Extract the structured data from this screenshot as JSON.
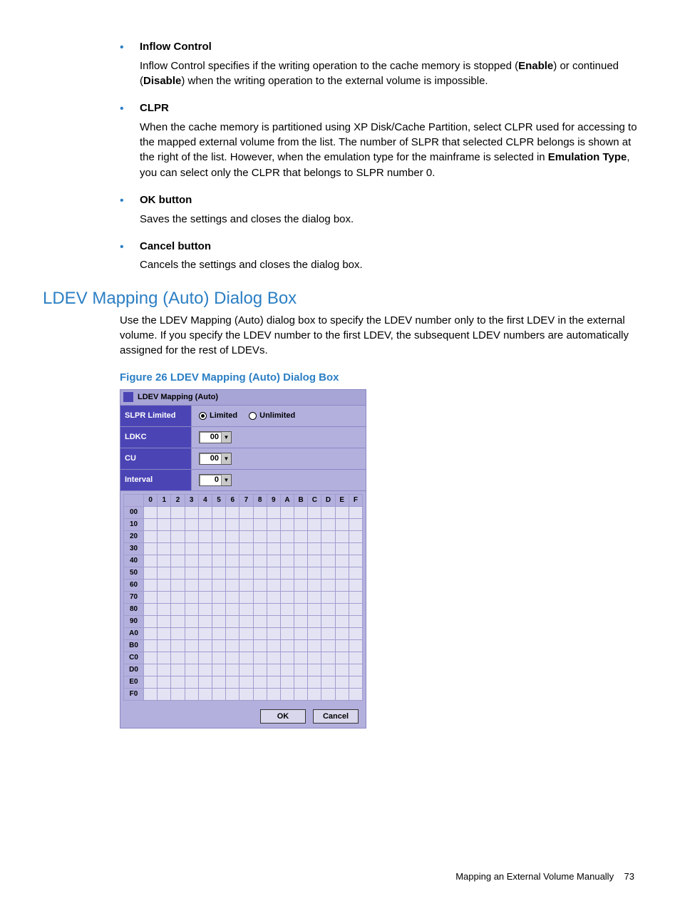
{
  "colors": {
    "accent_text": "#2b7fc4",
    "dialog_bg": "#b3b0de",
    "dialog_label_bg": "#4b44b5",
    "dialog_cell_bg": "#e4e3f3",
    "dialog_border": "#8b88c5"
  },
  "bullets": [
    {
      "term": "Inflow Control",
      "desc_html": "Inflow Control specifies if the writing operation to the cache memory is stopped (<b>Enable</b>) or continued (<b>Disable</b>) when the writing operation to the external volume is impossible."
    },
    {
      "term": "CLPR",
      "desc_html": "When the cache memory is partitioned using XP Disk/Cache Partition, select CLPR used for accessing to the mapped external volume from the list. The number of SLPR that selected CLPR belongs is shown at the right of the list. However, when the emulation type for the mainframe is selected in <b>Emulation Type</b>, you can select only the CLPR that belongs to SLPR number 0."
    },
    {
      "term_html": "<b>OK</b> button",
      "desc_html": "Saves the settings and closes the dialog box."
    },
    {
      "term_html": "<b>Cancel</b> button",
      "desc_html": "Cancels the settings and closes the dialog box."
    }
  ],
  "section_heading": "LDEV Mapping (Auto) Dialog Box",
  "section_para": "Use the LDEV Mapping (Auto) dialog box to specify the LDEV number only to the first LDEV in the external volume. If you specify the LDEV number to the first LDEV, the subsequent LDEV numbers are automatically assigned for the rest of LDEVs.",
  "figure_caption": "Figure 26 LDEV Mapping (Auto) Dialog Box",
  "dialog": {
    "title": "LDEV Mapping (Auto)",
    "rows": {
      "slpr": {
        "label": "SLPR Limited",
        "limited": "Limited",
        "unlimited": "Unlimited",
        "selected": "limited"
      },
      "ldkc": {
        "label": "LDKC",
        "value": "00"
      },
      "cu": {
        "label": "CU",
        "value": "00"
      },
      "interval": {
        "label": "Interval",
        "value": "0"
      }
    },
    "grid": {
      "cols": [
        "0",
        "1",
        "2",
        "3",
        "4",
        "5",
        "6",
        "7",
        "8",
        "9",
        "A",
        "B",
        "C",
        "D",
        "E",
        "F"
      ],
      "rows": [
        "00",
        "10",
        "20",
        "30",
        "40",
        "50",
        "60",
        "70",
        "80",
        "90",
        "A0",
        "B0",
        "C0",
        "D0",
        "E0",
        "F0"
      ]
    },
    "buttons": {
      "ok": "OK",
      "cancel": "Cancel"
    }
  },
  "footer": {
    "text": "Mapping an External Volume Manually",
    "page": "73"
  }
}
